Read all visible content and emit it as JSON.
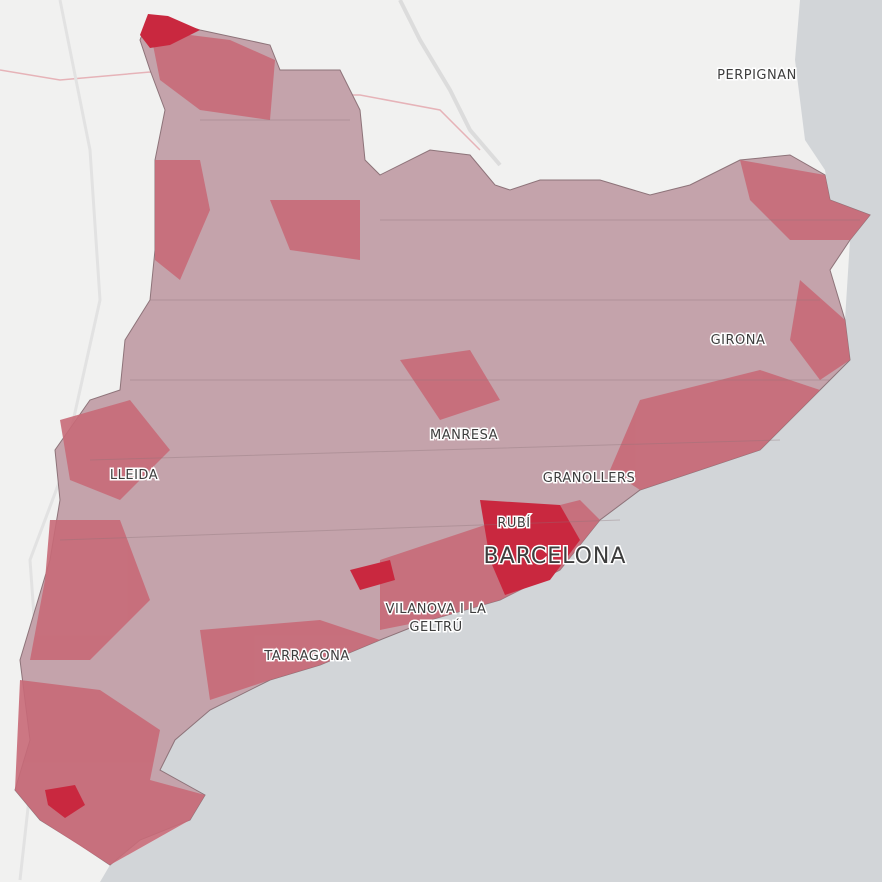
{
  "map": {
    "labels": [
      "PERPIGNAN",
      "GIRONA",
      "MANRESA",
      "LLEIDA",
      "GRANOLLERS",
      "RUBÍ",
      "BARCELONA",
      "VILANOVA I LA",
      "GELTRÚ",
      "TARRAGONA"
    ]
  }
}
